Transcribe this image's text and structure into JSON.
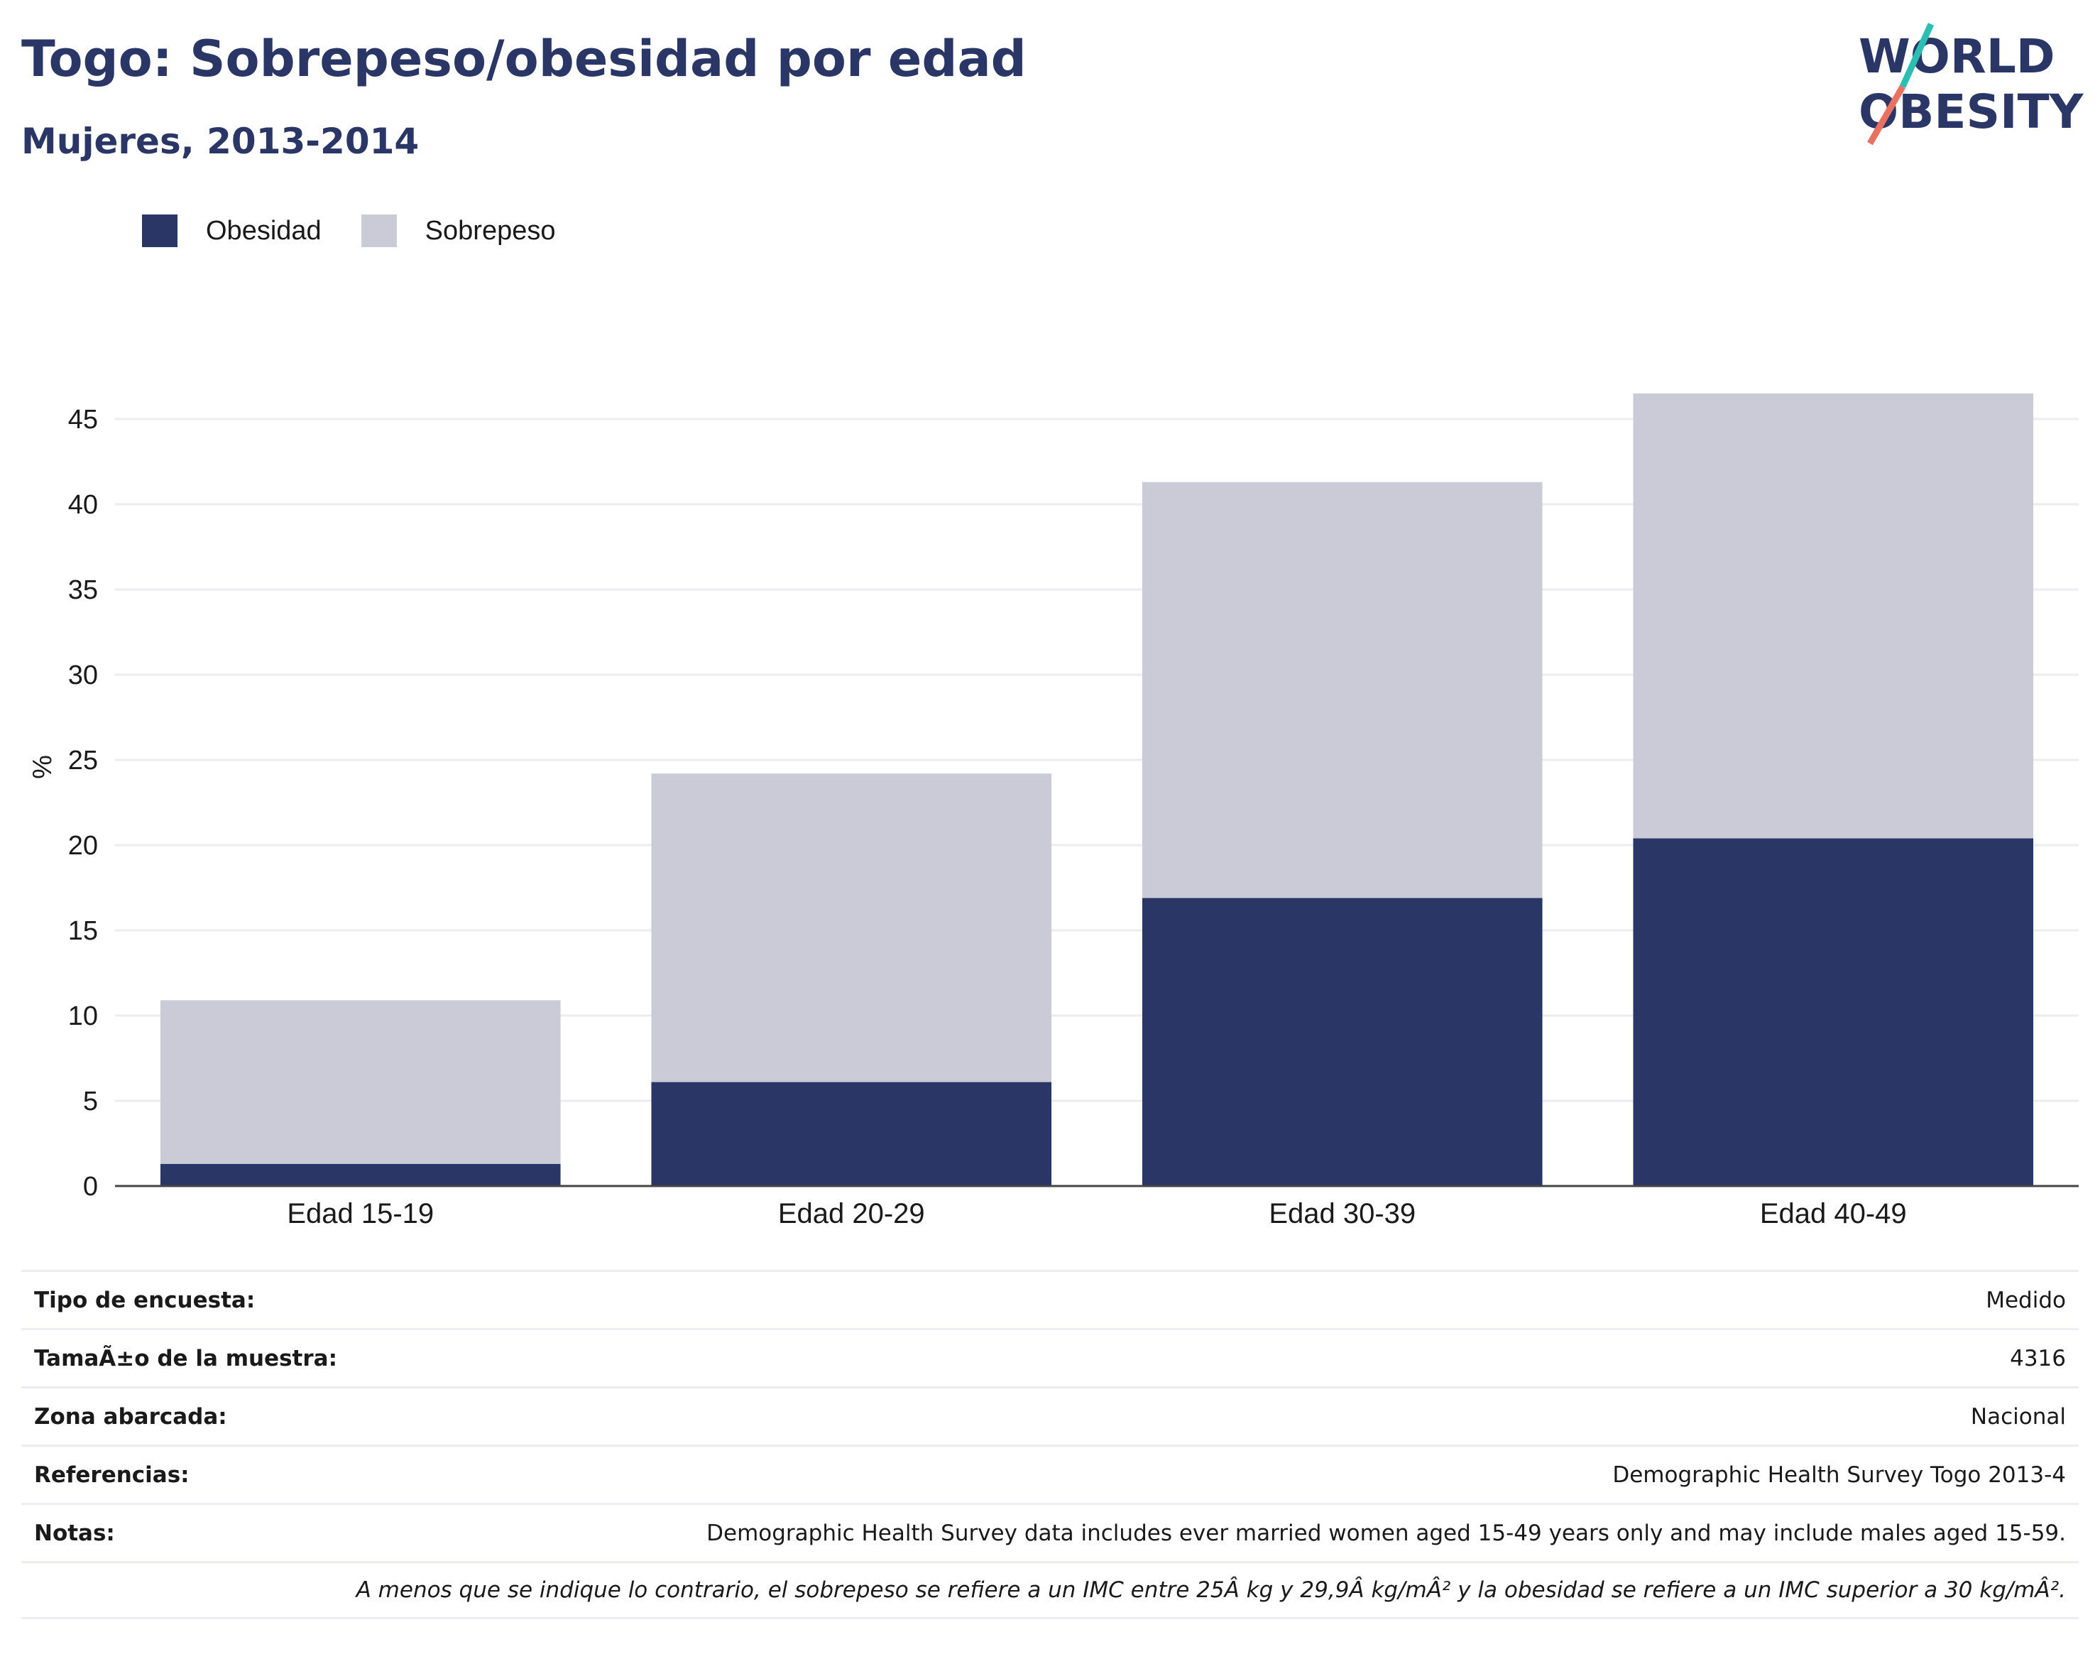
{
  "header": {
    "title": "Togo: Sobrepeso/obesidad por edad",
    "subtitle": "Mujeres, 2013-2014",
    "logo_line1": "WORLD",
    "logo_line2": "OBESITY"
  },
  "colors": {
    "obesidad": "#2a3766",
    "sobrepeso": "#cacbd6",
    "title": "#2a3766",
    "logo_teal": "#2bbfb3",
    "logo_coral": "#e8715f"
  },
  "legend": [
    {
      "label": "Obesidad",
      "color": "#2a3766"
    },
    {
      "label": "Sobrepeso",
      "color": "#cacbd6"
    }
  ],
  "chart_data": {
    "type": "bar",
    "stacked": true,
    "categories": [
      "Edad 15-19",
      "Edad 20-29",
      "Edad 30-39",
      "Edad 40-49"
    ],
    "series": [
      {
        "name": "Obesidad",
        "values": [
          1.3,
          6.1,
          16.9,
          20.4
        ]
      },
      {
        "name": "Sobrepeso",
        "values": [
          9.6,
          18.1,
          24.4,
          26.1
        ]
      }
    ],
    "ylabel": "%",
    "ylim": [
      0,
      47
    ],
    "yticks": [
      0,
      5,
      10,
      15,
      20,
      25,
      30,
      35,
      40,
      45
    ],
    "grid": true,
    "legend_position": "top-left"
  },
  "info": [
    {
      "label": "Tipo de encuesta:",
      "value": "Medido"
    },
    {
      "label": "TamaÃ±o de la muestra:",
      "value": "4316"
    },
    {
      "label": "Zona abarcada:",
      "value": "Nacional"
    },
    {
      "label": "Referencias:",
      "value": "Demographic Health Survey Togo 2013-4"
    },
    {
      "label": "Notas:",
      "value": "Demographic Health Survey data includes ever married women aged 15-49 years only and may include males aged 15-59."
    }
  ],
  "footnote": "A menos que se indique lo contrario, el sobrepeso se refiere a un IMC entre 25Â kg y 29,9Â kg/mÂ² y la obesidad se refiere a un IMC superior a 30 kg/mÂ²."
}
